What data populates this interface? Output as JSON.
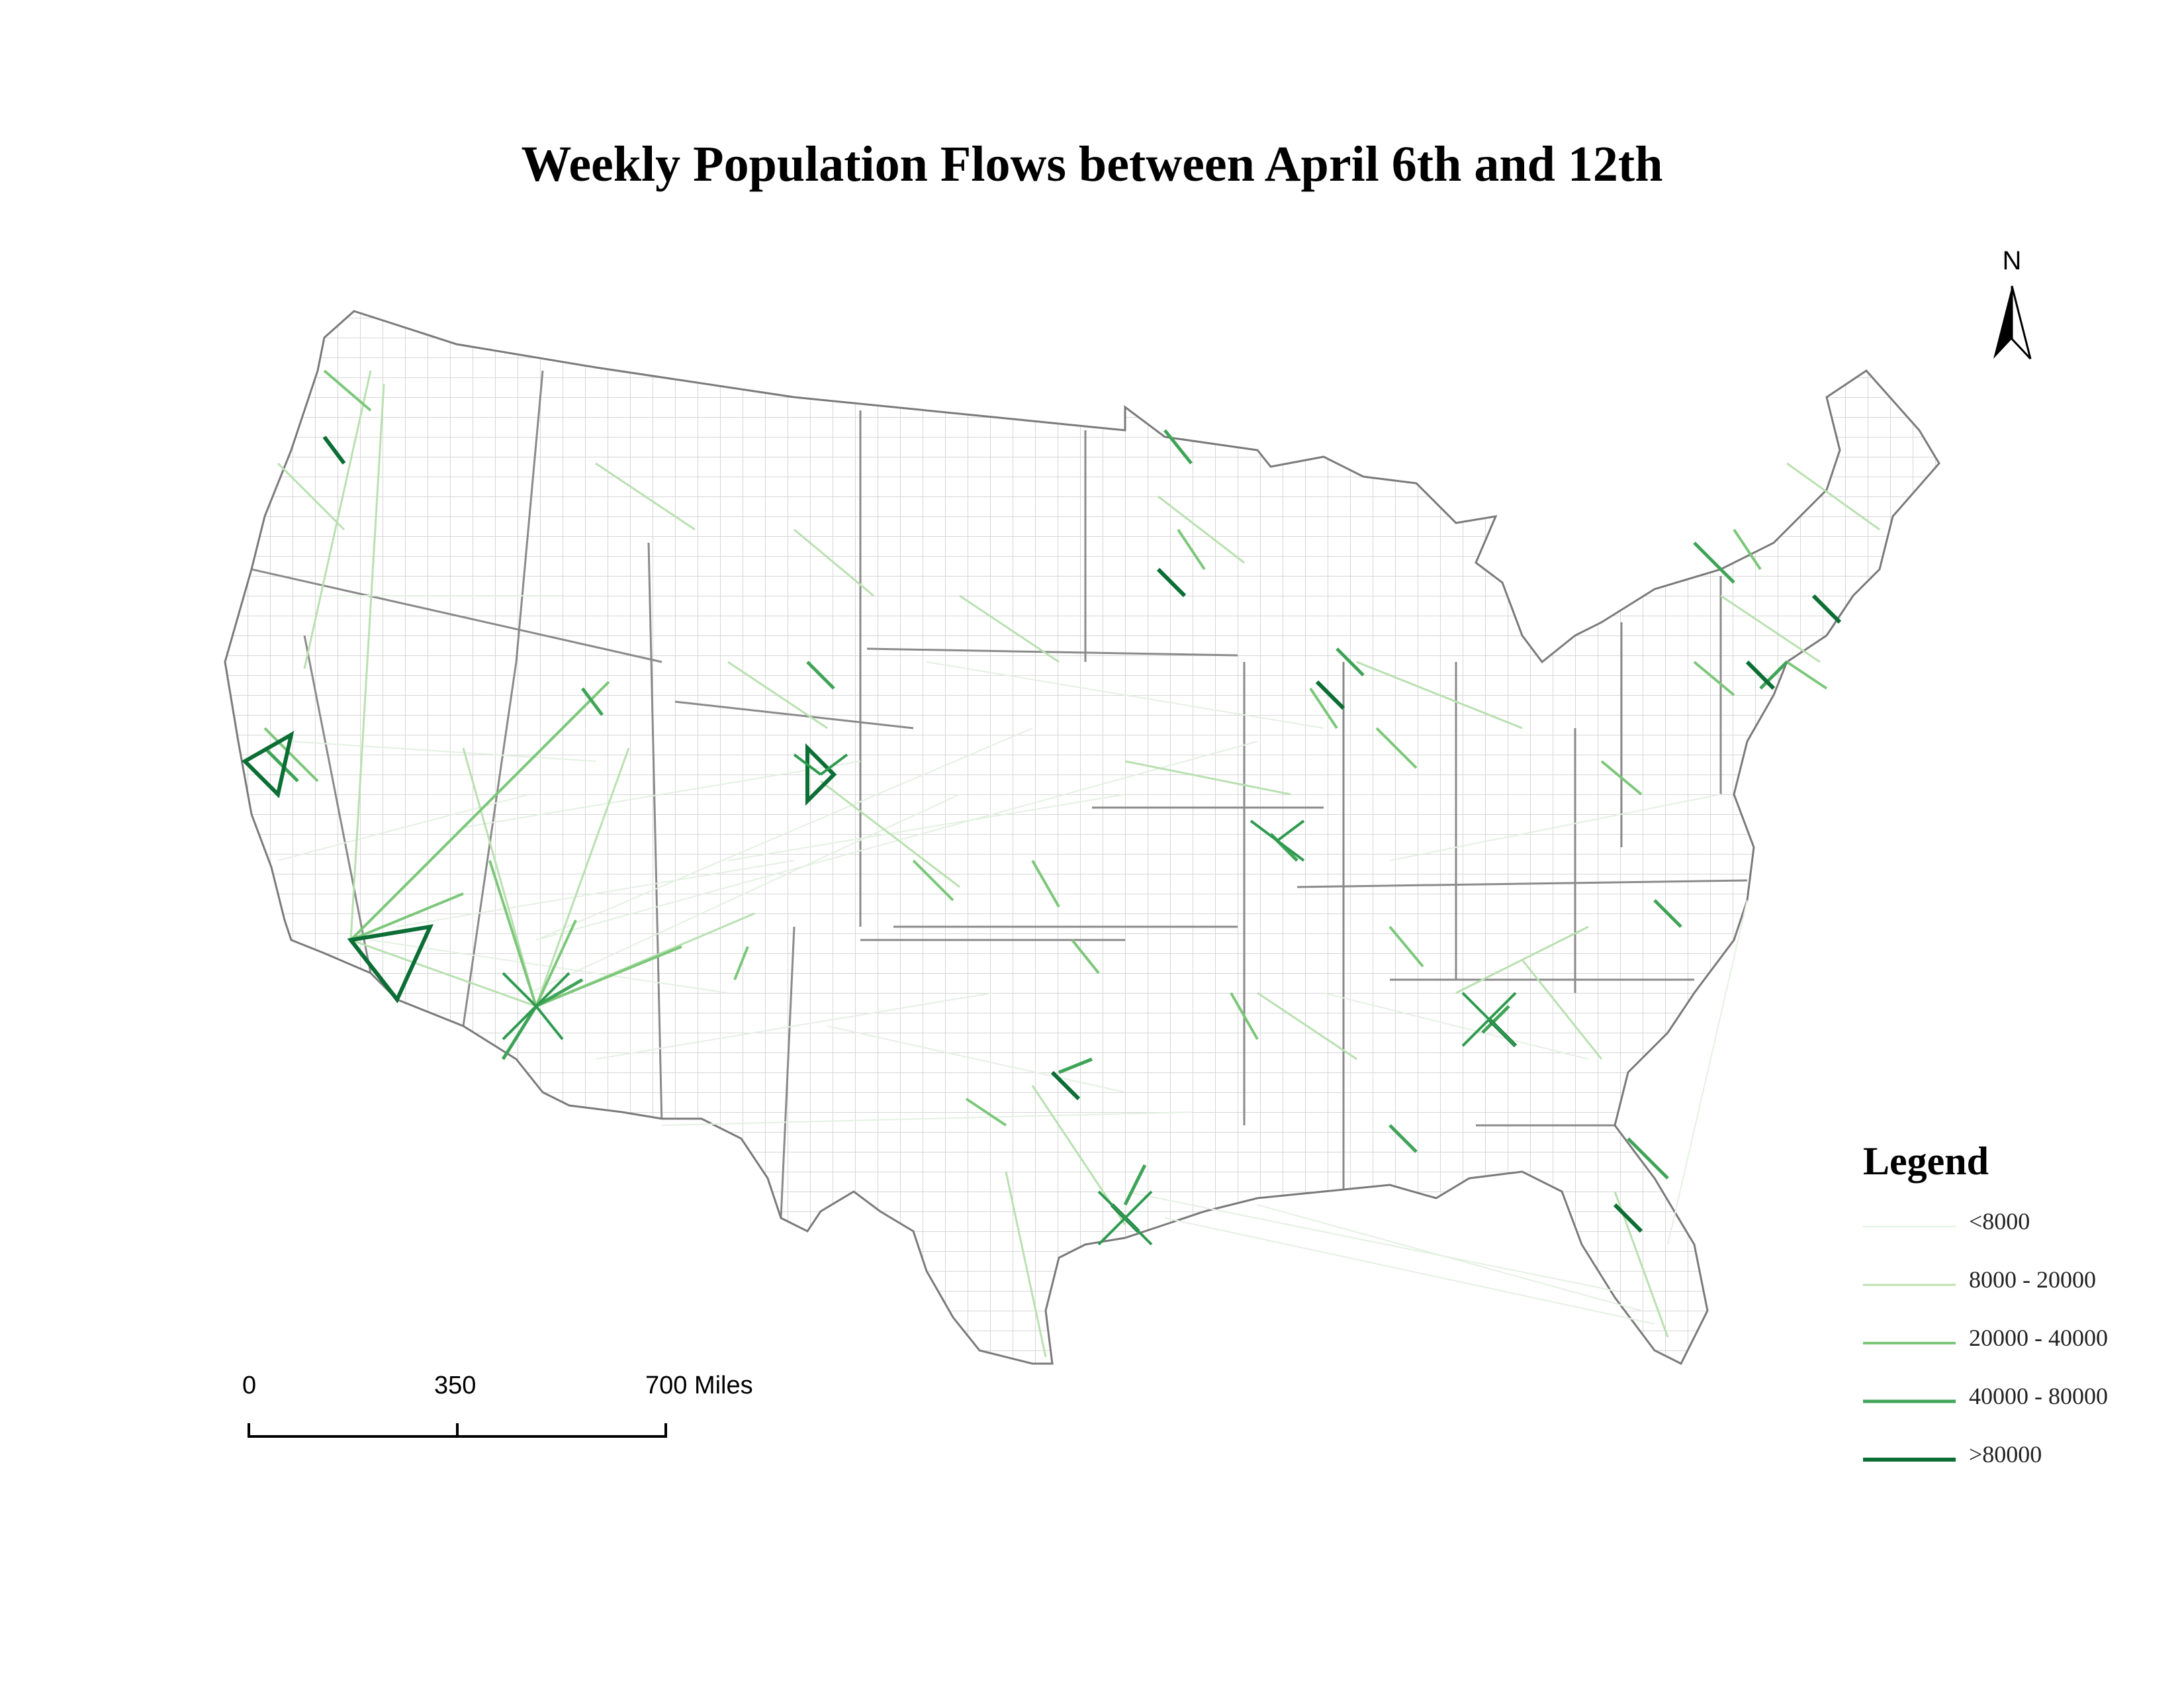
{
  "title": "Weekly Population Flows between April 6th and 12th",
  "north_arrow": {
    "label": "N"
  },
  "scale_bar": {
    "ticks": [
      "0",
      "350",
      "700 Miles"
    ]
  },
  "legend": {
    "title": "Legend",
    "items": [
      {
        "label": "<8000",
        "color": "#e3f1e1"
      },
      {
        "label": "8000 - 20000",
        "color": "#b9e0b1"
      },
      {
        "label": "20000 - 40000",
        "color": "#7cc77a"
      },
      {
        "label": "40000 - 80000",
        "color": "#3fa457"
      },
      {
        "label": ">80000",
        "color": "#0b6e34"
      }
    ]
  },
  "colors": {
    "state_border": "#8a8a8a",
    "county_border": "#d2d2d2",
    "land": "#ffffff"
  },
  "map_content": {
    "region": "contiguous United States",
    "layers": [
      "county boundaries",
      "state boundaries",
      "population flow lines"
    ]
  }
}
